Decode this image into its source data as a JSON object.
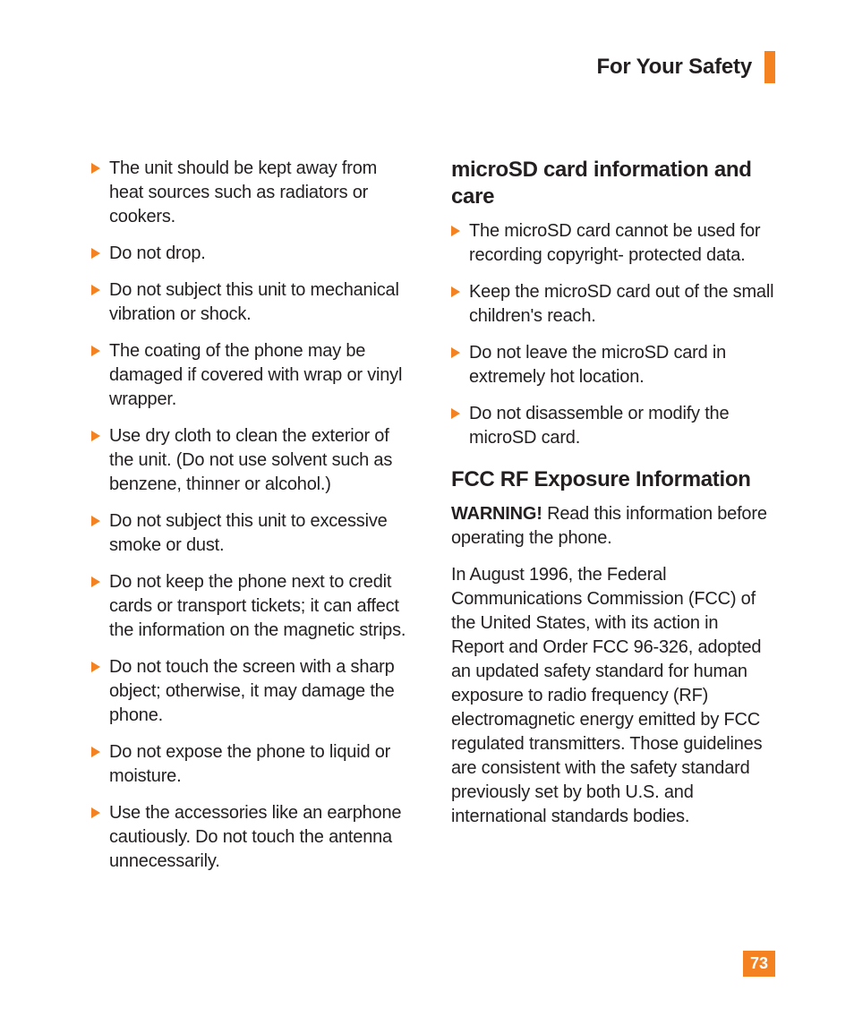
{
  "header": {
    "title": "For Your Safety",
    "accent_color": "#f58220"
  },
  "left_column": {
    "items": [
      "The unit should be kept away from heat sources such as radiators or cookers.",
      "Do not drop.",
      "Do not subject this unit to mechanical vibration or shock.",
      "The coating of the phone may be damaged if covered with wrap or vinyl wrapper.",
      "Use dry cloth to clean the exterior of the unit. (Do not use solvent such as benzene, thinner or alcohol.)",
      "Do not subject this unit to excessive smoke or dust.",
      "Do not keep the phone next to credit cards or transport tickets; it can affect the information on the magnetic strips.",
      "Do not touch the screen with a sharp object; otherwise, it may damage the phone.",
      "Do not expose the phone to liquid or moisture.",
      "Use the accessories like an earphone cautiously. Do not touch the antenna unnecessarily."
    ]
  },
  "right_column": {
    "section1": {
      "heading": "microSD card information and care",
      "items": [
        "The microSD card cannot be used for recording copyright- protected data.",
        "Keep the microSD card out of the small children's reach.",
        "Do not leave the microSD card in extremely hot location.",
        "Do not disassemble or modify the microSD card."
      ]
    },
    "section2": {
      "heading": "FCC RF Exposure Information",
      "warning_label": "WARNING!",
      "warning_text": " Read this information before operating the phone.",
      "body": "In August 1996, the Federal Communications Commission (FCC) of the United States, with its action in Report and Order FCC 96-326, adopted an updated safety standard for human exposure to radio frequency (RF) electromagnetic energy emitted by FCC regulated transmitters. Those guidelines are consistent with the safety standard previously set by both U.S. and international standards bodies."
    }
  },
  "page_number": "73",
  "styles": {
    "body_fontsize": 20,
    "heading_fontsize": 24,
    "header_fontsize": 24,
    "pagenum_fontsize": 18,
    "text_color": "#231f20",
    "accent_color": "#f58220",
    "background_color": "#ffffff",
    "line_height": 1.35
  }
}
